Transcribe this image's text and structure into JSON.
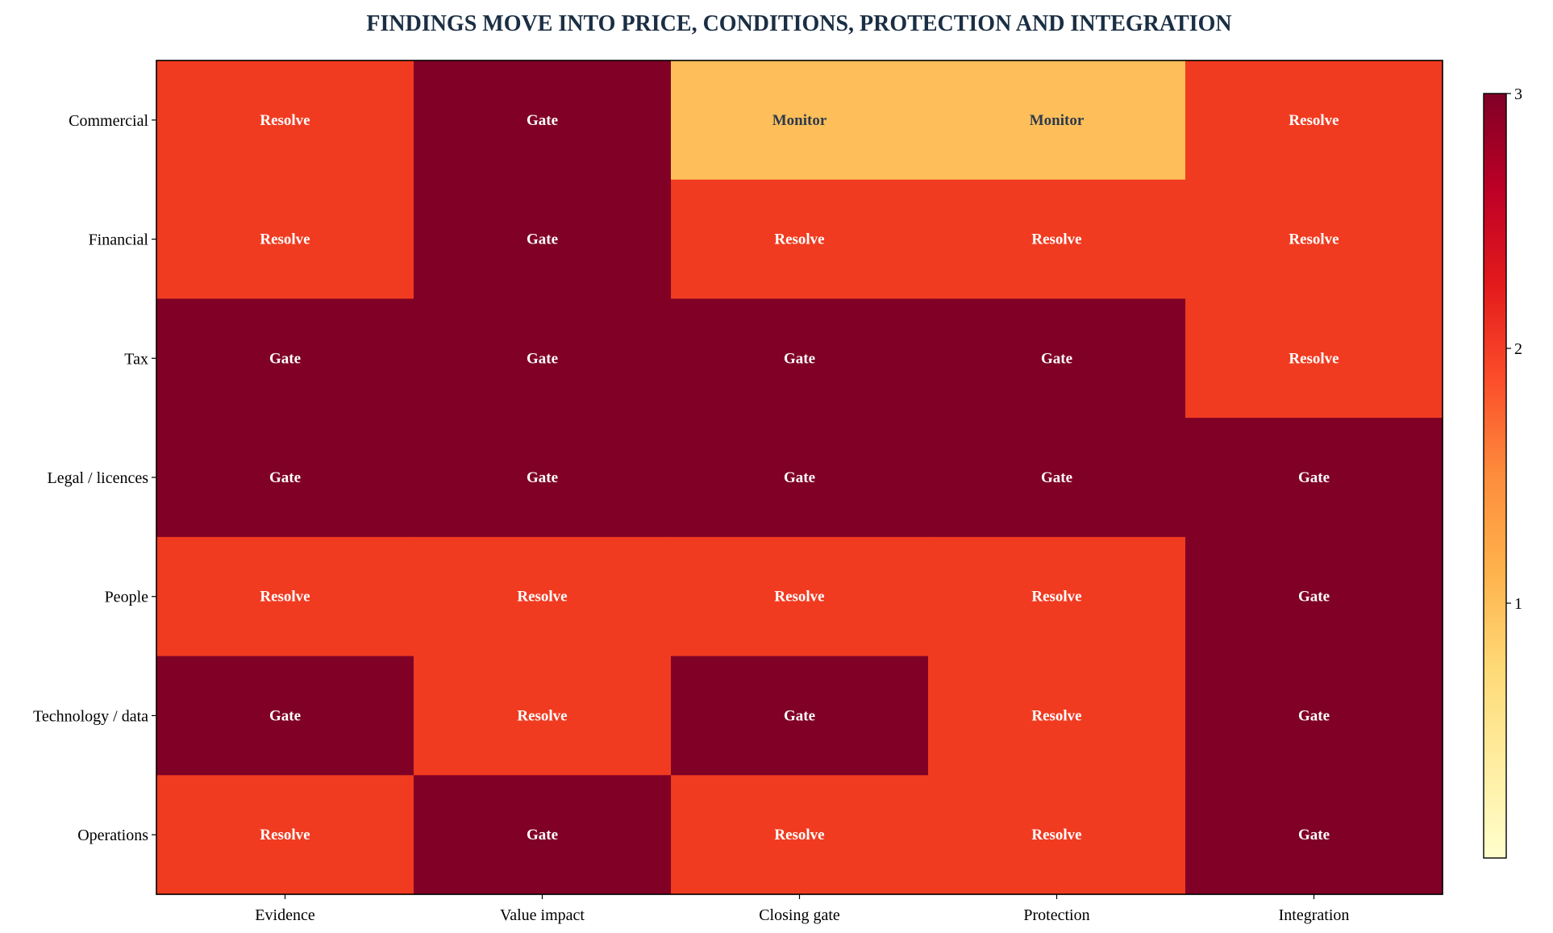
{
  "chart_data": {
    "type": "heatmap",
    "title": "FINDINGS MOVE INTO PRICE, CONDITIONS, PROTECTION AND INTEGRATION",
    "title_color": "#1a2e44",
    "x_categories": [
      "Evidence",
      "Value impact",
      "Closing gate",
      "Protection",
      "Integration"
    ],
    "y_categories": [
      "Commercial",
      "Financial",
      "Tax",
      "Legal / licences",
      "People",
      "Technology / data",
      "Operations"
    ],
    "values": [
      [
        2,
        3,
        1,
        1,
        2
      ],
      [
        2,
        3,
        2,
        2,
        2
      ],
      [
        3,
        3,
        3,
        3,
        2
      ],
      [
        3,
        3,
        3,
        3,
        3
      ],
      [
        2,
        2,
        2,
        2,
        3
      ],
      [
        3,
        2,
        3,
        2,
        3
      ],
      [
        2,
        3,
        2,
        2,
        3
      ]
    ],
    "labels": [
      [
        "Resolve",
        "Gate",
        "Monitor",
        "Monitor",
        "Resolve"
      ],
      [
        "Resolve",
        "Gate",
        "Resolve",
        "Resolve",
        "Resolve"
      ],
      [
        "Gate",
        "Gate",
        "Gate",
        "Gate",
        "Resolve"
      ],
      [
        "Gate",
        "Gate",
        "Gate",
        "Gate",
        "Gate"
      ],
      [
        "Resolve",
        "Resolve",
        "Resolve",
        "Resolve",
        "Gate"
      ],
      [
        "Gate",
        "Resolve",
        "Gate",
        "Resolve",
        "Gate"
      ],
      [
        "Resolve",
        "Gate",
        "Resolve",
        "Resolve",
        "Gate"
      ]
    ],
    "colorbar": {
      "range": [
        0,
        3
      ],
      "ticks": [
        "1",
        "2",
        "3"
      ],
      "colormap": "YlOrRd"
    },
    "colors": {
      "Monitor": "#febf5a",
      "Resolve": "#f03b20",
      "Gate": "#800026",
      "dark_label": "#2e3a4a",
      "light_label": "#ffffff"
    }
  }
}
